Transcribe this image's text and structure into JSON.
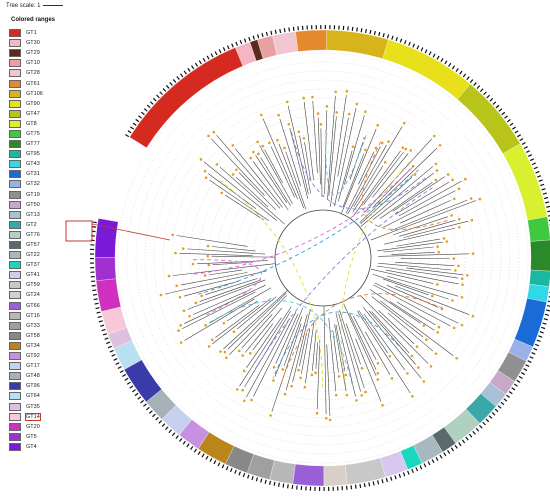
{
  "tree_scale": {
    "label": "Tree scale: 1"
  },
  "legend": {
    "title": "Colored ranges",
    "items": [
      {
        "label": "GT1",
        "color": "#d42a20"
      },
      {
        "label": "GT30",
        "color": "#f4b6c2"
      },
      {
        "label": "GT29",
        "color": "#5a2a1a"
      },
      {
        "label": "GT10",
        "color": "#e9a0a0"
      },
      {
        "label": "GT28",
        "color": "#f0c6d0"
      },
      {
        "label": "GT61",
        "color": "#e38a2c"
      },
      {
        "label": "GT106",
        "color": "#d8b41c"
      },
      {
        "label": "GT90",
        "color": "#e8e01a"
      },
      {
        "label": "GT47",
        "color": "#b8c41a"
      },
      {
        "label": "GT8",
        "color": "#d8f030"
      },
      {
        "label": "GT75",
        "color": "#40c840"
      },
      {
        "label": "GT77",
        "color": "#2a8a2a"
      },
      {
        "label": "GT95",
        "color": "#1ab8a0"
      },
      {
        "label": "GT43",
        "color": "#30d8e8"
      },
      {
        "label": "GT31",
        "color": "#1a6ad8"
      },
      {
        "label": "GT32",
        "color": "#9ab0e8"
      },
      {
        "label": "GT19",
        "color": "#909090"
      },
      {
        "label": "GT50",
        "color": "#c8a8c8"
      },
      {
        "label": "GT13",
        "color": "#a8c0d8"
      },
      {
        "label": "GT2",
        "color": "#3aa8a8"
      },
      {
        "label": "GT76",
        "color": "#b0d0c0"
      },
      {
        "label": "GT57",
        "color": "#5a6a6a"
      },
      {
        "label": "GT22",
        "color": "#a8b8c0"
      },
      {
        "label": "GT37",
        "color": "#1ad8c0"
      },
      {
        "label": "GT41",
        "color": "#d8c8f0"
      },
      {
        "label": "GT59",
        "color": "#c8c8c8"
      },
      {
        "label": "GT24",
        "color": "#d8d0c8"
      },
      {
        "label": "GT66",
        "color": "#9a60d8"
      },
      {
        "label": "GT16",
        "color": "#b8b8b8"
      },
      {
        "label": "GT33",
        "color": "#a0a0a0"
      },
      {
        "label": "GT58",
        "color": "#888888"
      },
      {
        "label": "GT34",
        "color": "#b8861a"
      },
      {
        "label": "GT92",
        "color": "#c890e0"
      },
      {
        "label": "GT17",
        "color": "#c8d0f0"
      },
      {
        "label": "GT48",
        "color": "#a8b0b8"
      },
      {
        "label": "GT96",
        "color": "#3a3aa8"
      },
      {
        "label": "GT64",
        "color": "#b8e0f0"
      },
      {
        "label": "GT35",
        "color": "#e0c0e0"
      },
      {
        "label": "GT14",
        "color": "#f8c8d8"
      },
      {
        "label": "GT20",
        "color": "#d030c0"
      },
      {
        "label": "GT5",
        "color": "#a030d0"
      },
      {
        "label": "GT4",
        "color": "#7a1ad8"
      }
    ]
  },
  "ring_segments": [
    {
      "group": "GT1",
      "color": "#d42a20"
    },
    {
      "group": "GT30",
      "color": "#f4b6c2"
    },
    {
      "group": "GT29",
      "color": "#5a2a1a"
    },
    {
      "group": "GT10",
      "color": "#e9a0a0"
    },
    {
      "group": "GT28",
      "color": "#f0c6d0"
    },
    {
      "group": "GT61",
      "color": "#e38a2c"
    },
    {
      "group": "GT106",
      "color": "#d8b41c"
    },
    {
      "group": "GT90",
      "color": "#e8e01a"
    },
    {
      "group": "GT47",
      "color": "#b8c41a"
    },
    {
      "group": "GT8",
      "color": "#d8f030"
    },
    {
      "group": "GT75",
      "color": "#40c840"
    },
    {
      "group": "GT77",
      "color": "#2a8a2a"
    },
    {
      "group": "GT95",
      "color": "#1ab8a0"
    },
    {
      "group": "GT43",
      "color": "#30d8e8"
    },
    {
      "group": "GT31",
      "color": "#1a6ad8"
    },
    {
      "group": "GT32",
      "color": "#9ab0e8"
    },
    {
      "group": "GT19",
      "color": "#909090"
    },
    {
      "group": "GT50",
      "color": "#c8a8c8"
    },
    {
      "group": "GT13",
      "color": "#a8c0d8"
    },
    {
      "group": "GT2",
      "color": "#3aa8a8"
    },
    {
      "group": "GT76",
      "color": "#b0d0c0"
    },
    {
      "group": "GT57",
      "color": "#5a6a6a"
    },
    {
      "group": "GT22",
      "color": "#a8b8c0"
    },
    {
      "group": "GT37",
      "color": "#1ad8c0"
    },
    {
      "group": "GT41",
      "color": "#d8c8f0"
    },
    {
      "group": "GT59",
      "color": "#c8c8c8"
    },
    {
      "group": "GT24",
      "color": "#d8d0c8"
    },
    {
      "group": "GT66",
      "color": "#9a60d8"
    },
    {
      "group": "GT16",
      "color": "#b8b8b8"
    },
    {
      "group": "GT33",
      "color": "#a0a0a0"
    },
    {
      "group": "GT58",
      "color": "#888888"
    },
    {
      "group": "GT34",
      "color": "#b8861a"
    },
    {
      "group": "GT92",
      "color": "#c890e0"
    },
    {
      "group": "GT17",
      "color": "#c8d0f0"
    },
    {
      "group": "GT48",
      "color": "#a8b0b8"
    },
    {
      "group": "GT96",
      "color": "#3a3aa8"
    },
    {
      "group": "GT64",
      "color": "#b8e0f0"
    },
    {
      "group": "GT35",
      "color": "#e0c0e0"
    },
    {
      "group": "GT14",
      "color": "#f8c8d8"
    },
    {
      "group": "GT20",
      "color": "#d030c0"
    },
    {
      "group": "GT5",
      "color": "#a030d0"
    },
    {
      "group": "GT4",
      "color": "#7a1ad8"
    }
  ],
  "highlighted_group": "GT14",
  "colors": {
    "branch": "#444444",
    "leaf_marker": "#e0a020",
    "guide_ring": "#bbbbbb"
  }
}
